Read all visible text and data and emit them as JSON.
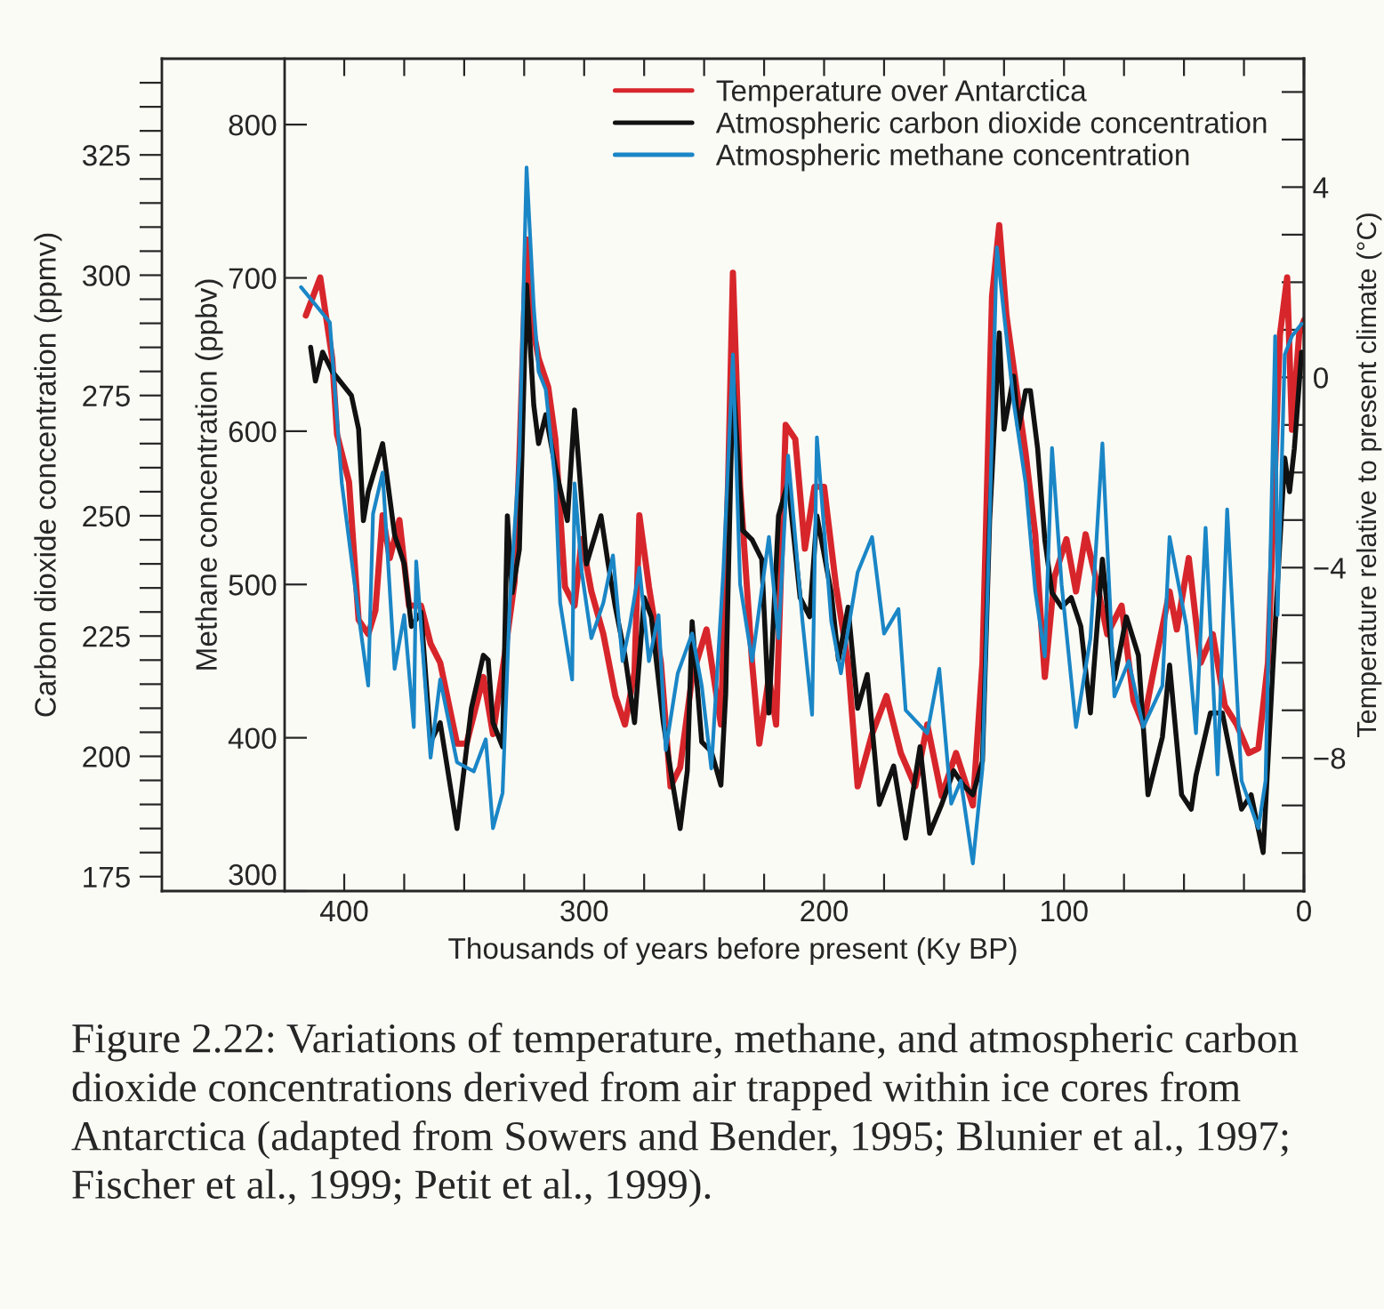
{
  "chart_data": {
    "type": "line",
    "xlabel": "Thousands of years before present (Ky BP)",
    "ylabel": "Carbon dioxide concentration (ppmv)",
    "y3label": "Methane concentration (ppbv)",
    "y2label": "Temperature relative to present climate (°C)",
    "xlim": [
      476,
      0
    ],
    "xticks": [
      400,
      300,
      200,
      100,
      0,
      {
        "value": 375,
        "label": null
      },
      {
        "value": 350,
        "label": null
      },
      {
        "value": 325,
        "label": null
      },
      {
        "value": 275,
        "label": null
      },
      {
        "value": 250,
        "label": null
      },
      {
        "value": 225,
        "label": null
      },
      {
        "value": 175,
        "label": null
      },
      {
        "value": 150,
        "label": null
      },
      {
        "value": 125,
        "label": null
      },
      {
        "value": 75,
        "label": null
      },
      {
        "value": 50,
        "label": null
      },
      {
        "value": 25,
        "label": null
      }
    ],
    "ylim": [
      172,
      345
    ],
    "yticks": [
      175,
      200,
      225,
      250,
      275,
      300,
      325,
      {
        "value": 180,
        "label": null
      },
      {
        "value": 185,
        "label": null
      },
      {
        "value": 190,
        "label": null
      },
      {
        "value": 195,
        "label": null
      },
      {
        "value": 205,
        "label": null
      },
      {
        "value": 210,
        "label": null
      },
      {
        "value": 215,
        "label": null
      },
      {
        "value": 220,
        "label": null
      },
      {
        "value": 230,
        "label": null
      },
      {
        "value": 235,
        "label": null
      },
      {
        "value": 240,
        "label": null
      },
      {
        "value": 245,
        "label": null
      },
      {
        "value": 255,
        "label": null
      },
      {
        "value": 260,
        "label": null
      },
      {
        "value": 265,
        "label": null
      },
      {
        "value": 270,
        "label": null
      },
      {
        "value": 280,
        "label": null
      },
      {
        "value": 285,
        "label": null
      },
      {
        "value": 290,
        "label": null
      },
      {
        "value": 295,
        "label": null
      },
      {
        "value": 305,
        "label": null
      },
      {
        "value": 310,
        "label": null
      },
      {
        "value": 315,
        "label": null
      },
      {
        "value": 320,
        "label": null
      },
      {
        "value": 330,
        "label": null
      },
      {
        "value": 335,
        "label": null
      },
      {
        "value": 340,
        "label": null
      }
    ],
    "y3lim": [
      300,
      843
    ],
    "y3ticks": [
      300,
      400,
      500,
      600,
      700,
      800
    ],
    "y2lim": [
      -10.8,
      6.7
    ],
    "y2ticks": [
      4,
      0,
      {
        "value": -4,
        "label": "−4"
      },
      {
        "value": -8,
        "label": "−8"
      },
      {
        "value": -10,
        "label": null
      },
      {
        "value": -9,
        "label": null
      },
      {
        "value": -7,
        "label": null
      },
      {
        "value": -6,
        "label": null
      },
      {
        "value": -5,
        "label": null
      },
      {
        "value": -3,
        "label": null
      },
      {
        "value": -2,
        "label": null
      },
      {
        "value": -1,
        "label": null
      },
      {
        "value": 1,
        "label": null
      },
      {
        "value": 2,
        "label": null
      },
      {
        "value": 3,
        "label": null
      },
      {
        "value": 5,
        "label": null
      },
      {
        "value": 6,
        "label": null
      }
    ],
    "legend": "top right",
    "line_style": "solid",
    "series": [
      {
        "name": "Temperature over Antarctica",
        "color": "#d7262b",
        "axis": "y2",
        "x": [
          416,
          410,
          405,
          403,
          398,
          394,
          390,
          387,
          384,
          381,
          377,
          373,
          368,
          364,
          360,
          353,
          349,
          342,
          338,
          333,
          329,
          327,
          324,
          322,
          319,
          315,
          312,
          308,
          304,
          301,
          297,
          292,
          287,
          283,
          279,
          277,
          273,
          268,
          264,
          260,
          255,
          249,
          243,
          240,
          238,
          235,
          230,
          227,
          223,
          220,
          216,
          212,
          208,
          204,
          200,
          195,
          190,
          186,
          180,
          174,
          168,
          162,
          157,
          151,
          145,
          138,
          134,
          130,
          127,
          124,
          121,
          116,
          112,
          108,
          104,
          99,
          95,
          91,
          86,
          82,
          76,
          71,
          67,
          62,
          56,
          53,
          48,
          43,
          38,
          33,
          28,
          23,
          19,
          15,
          10,
          7,
          5,
          2,
          0
        ],
        "values": [
          1.3,
          2.1,
          0.4,
          -1.2,
          -2.2,
          -5.1,
          -5.4,
          -4.9,
          -2.9,
          -3.8,
          -3.0,
          -4.8,
          -4.8,
          -5.6,
          -6.0,
          -7.7,
          -7.7,
          -6.3,
          -7.5,
          -5.8,
          -4.3,
          -1.7,
          2.9,
          1.2,
          0.4,
          -0.2,
          -1.3,
          -4.4,
          -4.8,
          -3.4,
          -4.5,
          -5.4,
          -6.7,
          -7.3,
          -6.2,
          -2.9,
          -4.4,
          -6.0,
          -8.6,
          -8.2,
          -6.3,
          -5.3,
          -7.3,
          -2.2,
          2.2,
          -2.3,
          -6.0,
          -7.7,
          -6.3,
          -7.3,
          -1.0,
          -1.3,
          -3.6,
          -2.3,
          -2.3,
          -4.4,
          -6.0,
          -8.6,
          -7.5,
          -6.7,
          -7.9,
          -8.6,
          -7.3,
          -8.8,
          -7.9,
          -9.0,
          -6.0,
          1.7,
          3.2,
          1.3,
          0.2,
          -1.6,
          -3.3,
          -6.3,
          -4.2,
          -3.4,
          -4.5,
          -3.3,
          -4.4,
          -5.4,
          -4.8,
          -6.8,
          -7.3,
          -6.0,
          -4.5,
          -5.3,
          -3.8,
          -6.0,
          -5.4,
          -6.9,
          -7.3,
          -7.9,
          -7.8,
          -6.0,
          0.9,
          2.1,
          -1.1,
          0.9,
          1.2
        ]
      },
      {
        "name": "Atmospheric carbon dioxide concentration",
        "color": "#111111",
        "axis": "y",
        "x": [
          414,
          412,
          409,
          405,
          397,
          394,
          392,
          390,
          384,
          379,
          375,
          372,
          368,
          364,
          360,
          353,
          347,
          342,
          340,
          338,
          334,
          332,
          330,
          327,
          324,
          321,
          319,
          316,
          312,
          307,
          304,
          299,
          293,
          290,
          287,
          283,
          279,
          275,
          272,
          267,
          263,
          260,
          257,
          255,
          251,
          247,
          243,
          241,
          238,
          234,
          230,
          226,
          223,
          219,
          215,
          210,
          206,
          203,
          197,
          194,
          190,
          186,
          182,
          177,
          171,
          166,
          160,
          156,
          151,
          146,
          142,
          138,
          134,
          131,
          127,
          125,
          121,
          119,
          116,
          114,
          111,
          108,
          105,
          101,
          97,
          93,
          89,
          84,
          79,
          74,
          69,
          65,
          59,
          56,
          51,
          47,
          45,
          39,
          34,
          30,
          26,
          22,
          17,
          13,
          11,
          8,
          6,
          4,
          1
        ],
        "values": [
          285,
          278,
          284,
          280,
          275,
          268,
          249,
          255,
          265,
          246,
          240,
          227,
          230,
          203,
          207,
          185,
          210,
          221,
          220,
          207,
          202,
          250,
          234,
          243,
          298,
          273,
          265,
          271,
          260,
          249,
          272,
          240,
          250,
          240,
          231,
          221,
          207,
          233,
          229,
          207,
          194,
          185,
          197,
          228,
          203,
          201,
          194,
          213,
          279,
          247,
          245,
          241,
          209,
          250,
          257,
          233,
          229,
          250,
          234,
          220,
          231,
          210,
          217,
          190,
          198,
          183,
          202,
          184,
          190,
          197,
          194,
          192,
          199,
          249,
          288,
          268,
          279,
          268,
          276,
          276,
          264,
          245,
          234,
          231,
          233,
          227,
          209,
          241,
          216,
          229,
          221,
          192,
          204,
          219,
          192,
          189,
          196,
          209,
          209,
          199,
          189,
          192,
          180,
          218,
          236,
          262,
          255,
          264,
          284
        ]
      },
      {
        "name": "Atmospheric methane concentration",
        "color": "#1a86c6",
        "axis": "y3",
        "x": [
          418,
          406,
          401,
          394,
          390,
          388,
          384,
          379,
          375,
          371,
          370,
          364,
          360,
          353,
          346,
          341,
          338,
          334,
          331,
          327,
          324,
          321,
          319,
          316,
          312,
          310,
          305,
          304,
          301,
          297,
          292,
          288,
          284,
          281,
          277,
          273,
          269,
          266,
          261,
          255,
          251,
          247,
          242,
          238,
          235,
          230,
          223,
          219,
          215,
          209,
          205,
          203,
          197,
          193,
          186,
          180,
          175,
          169,
          166,
          157,
          152,
          147,
          143,
          138,
          134,
          131,
          128,
          125,
          121,
          116,
          112,
          108,
          105,
          101,
          95,
          89,
          84,
          79,
          73,
          67,
          59,
          56,
          49,
          45,
          41,
          36,
          32,
          26,
          19,
          16,
          12,
          11,
          8,
          5,
          1
        ],
        "values": [
          694,
          671,
          566,
          480,
          434,
          546,
          573,
          445,
          480,
          407,
          515,
          387,
          438,
          384,
          378,
          399,
          341,
          364,
          488,
          584,
          772,
          681,
          639,
          627,
          566,
          488,
          438,
          566,
          508,
          465,
          488,
          519,
          450,
          473,
          511,
          450,
          480,
          392,
          442,
          468,
          434,
          380,
          508,
          650,
          500,
          450,
          531,
          465,
          584,
          476,
          415,
          596,
          476,
          442,
          508,
          531,
          468,
          484,
          418,
          403,
          445,
          357,
          372,
          318,
          380,
          542,
          720,
          676,
          619,
          566,
          496,
          453,
          589,
          500,
          407,
          465,
          592,
          427,
          450,
          407,
          434,
          531,
          473,
          403,
          537,
          376,
          549,
          372,
          341,
          372,
          662,
          480,
          650,
          662,
          670
        ]
      }
    ],
    "annotations": [
      "Figure 2.22: Variations of temperature, methane, and atmospheric carbon dioxide concentrations derived from air trapped within ice cores from Antarctica (adapted from Sowers and Bender, 1995; Blunier et al., 1997; Fischer et al., 1999; Petit et al., 1999)."
    ]
  }
}
